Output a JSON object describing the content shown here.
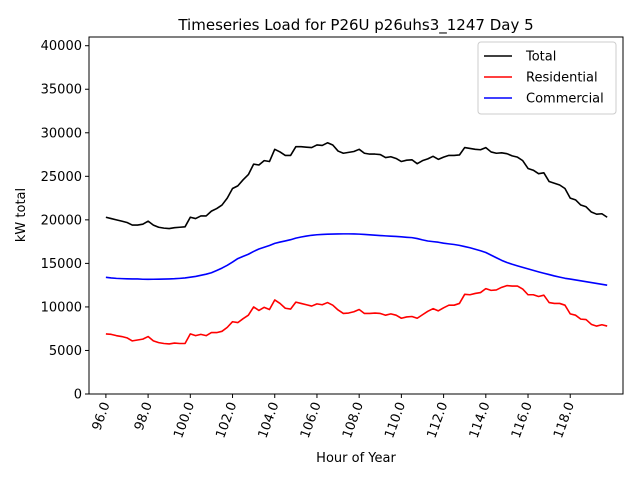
{
  "chart_data": {
    "type": "line",
    "title": "Timeseries Load for P26U p26uhs3_1247  Day 5",
    "xlabel": "Hour of Year",
    "ylabel": "kW total",
    "xlim": [
      95.2,
      120.5
    ],
    "ylim": [
      0,
      41000
    ],
    "xticks": [
      96,
      98,
      100,
      102,
      104,
      106,
      108,
      110,
      112,
      114,
      116,
      118
    ],
    "xtick_labels": [
      "96.0",
      "98.0",
      "100.0",
      "102.0",
      "104.0",
      "106.0",
      "108.0",
      "110.0",
      "112.0",
      "114.0",
      "116.0",
      "118.0"
    ],
    "yticks": [
      0,
      5000,
      10000,
      15000,
      20000,
      25000,
      30000,
      35000,
      40000
    ],
    "ytick_labels": [
      "0",
      "5000",
      "10000",
      "15000",
      "20000",
      "25000",
      "30000",
      "35000",
      "40000"
    ],
    "legend_position": "top-right",
    "x": [
      96.0,
      96.25,
      96.5,
      96.75,
      97.0,
      97.25,
      97.5,
      97.75,
      98.0,
      98.25,
      98.5,
      98.75,
      99.0,
      99.25,
      99.5,
      99.75,
      100.0,
      100.25,
      100.5,
      100.75,
      101.0,
      101.25,
      101.5,
      101.75,
      102.0,
      102.25,
      102.5,
      102.75,
      103.0,
      103.25,
      103.5,
      103.75,
      104.0,
      104.25,
      104.5,
      104.75,
      105.0,
      105.25,
      105.5,
      105.75,
      106.0,
      106.25,
      106.5,
      106.75,
      107.0,
      107.25,
      107.5,
      107.75,
      108.0,
      108.25,
      108.5,
      108.75,
      109.0,
      109.25,
      109.5,
      109.75,
      110.0,
      110.25,
      110.5,
      110.75,
      111.0,
      111.25,
      111.5,
      111.75,
      112.0,
      112.25,
      112.5,
      112.75,
      113.0,
      113.25,
      113.5,
      113.75,
      114.0,
      114.25,
      114.5,
      114.75,
      115.0,
      115.25,
      115.5,
      115.75,
      116.0,
      116.25,
      116.5,
      116.75,
      117.0,
      117.25,
      117.5,
      117.75,
      118.0,
      118.25,
      118.5,
      118.75,
      119.0,
      119.25,
      119.5,
      119.75
    ],
    "series": [
      {
        "name": "Total",
        "color": "#000000",
        "values": [
          20300,
          20150,
          20000,
          19850,
          19700,
          19400,
          19400,
          19500,
          19850,
          19400,
          19150,
          19050,
          19000,
          19100,
          19150,
          19200,
          20300,
          20150,
          20450,
          20450,
          21000,
          21300,
          21700,
          22500,
          23600,
          23900,
          24600,
          25200,
          26400,
          26300,
          26800,
          26700,
          28100,
          27800,
          27400,
          27400,
          28400,
          28400,
          28350,
          28300,
          28600,
          28550,
          28850,
          28600,
          27900,
          27650,
          27750,
          27850,
          28100,
          27650,
          27550,
          27550,
          27500,
          27150,
          27250,
          27050,
          26700,
          26850,
          26900,
          26450,
          26800,
          27000,
          27300,
          26950,
          27200,
          27400,
          27400,
          27450,
          28300,
          28200,
          28100,
          28050,
          28300,
          27800,
          27650,
          27700,
          27600,
          27350,
          27200,
          26800,
          25900,
          25700,
          25300,
          25400,
          24400,
          24200,
          24000,
          23600,
          22500,
          22300,
          21700,
          21500,
          20900,
          20650,
          20700,
          20300
        ]
      },
      {
        "name": "Residential",
        "color": "#ff0000",
        "values": [
          6900,
          6850,
          6700,
          6600,
          6450,
          6100,
          6200,
          6300,
          6600,
          6100,
          5900,
          5800,
          5750,
          5850,
          5800,
          5800,
          6900,
          6700,
          6850,
          6700,
          7050,
          7050,
          7200,
          7650,
          8300,
          8200,
          8650,
          9050,
          10000,
          9600,
          9950,
          9700,
          10800,
          10400,
          9850,
          9750,
          10550,
          10400,
          10250,
          10100,
          10350,
          10250,
          10500,
          10200,
          9650,
          9250,
          9300,
          9450,
          9700,
          9250,
          9250,
          9300,
          9250,
          9050,
          9200,
          9050,
          8700,
          8850,
          8900,
          8700,
          9100,
          9500,
          9800,
          9550,
          9900,
          10200,
          10200,
          10400,
          11450,
          11400,
          11550,
          11650,
          12100,
          11900,
          11950,
          12250,
          12450,
          12400,
          12400,
          12050,
          11400,
          11400,
          11200,
          11350,
          10500,
          10400,
          10400,
          10200,
          9200,
          9050,
          8600,
          8550,
          8000,
          7800,
          7950,
          7800
        ]
      },
      {
        "name": "Commercial",
        "color": "#0000ff",
        "values": [
          13400,
          13330,
          13280,
          13250,
          13230,
          13220,
          13210,
          13180,
          13170,
          13180,
          13190,
          13200,
          13220,
          13240,
          13280,
          13330,
          13420,
          13500,
          13630,
          13760,
          13930,
          14180,
          14460,
          14780,
          15150,
          15550,
          15800,
          16050,
          16370,
          16650,
          16850,
          17050,
          17300,
          17450,
          17580,
          17720,
          17900,
          18030,
          18140,
          18230,
          18290,
          18330,
          18350,
          18370,
          18380,
          18390,
          18390,
          18380,
          18360,
          18320,
          18280,
          18240,
          18200,
          18160,
          18120,
          18090,
          18050,
          18000,
          17960,
          17850,
          17700,
          17570,
          17500,
          17430,
          17320,
          17240,
          17170,
          17070,
          16930,
          16800,
          16620,
          16450,
          16250,
          15950,
          15650,
          15350,
          15100,
          14900,
          14720,
          14540,
          14370,
          14200,
          14030,
          13870,
          13720,
          13560,
          13420,
          13290,
          13200,
          13100,
          13000,
          12900,
          12800,
          12700,
          12600,
          12500
        ]
      }
    ]
  }
}
